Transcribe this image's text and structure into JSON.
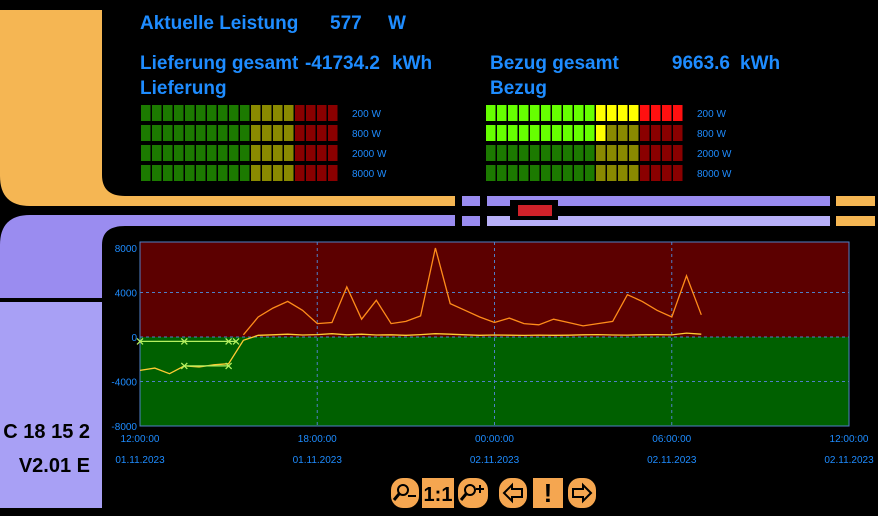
{
  "header": {
    "label": "Aktuelle Leistung",
    "value": "577",
    "unit": "W"
  },
  "lieferung": {
    "label": "Lieferung gesamt",
    "value": "-41734.2",
    "unit": "kWh",
    "meter_title": "Lieferung",
    "meter_rows": [
      {
        "label": "200 W",
        "lit": 0
      },
      {
        "label": "800 W",
        "lit": 0
      },
      {
        "label": "2000 W",
        "lit": 0
      },
      {
        "label": "8000 W",
        "lit": 0
      }
    ]
  },
  "bezug": {
    "label": "Bezug gesamt",
    "value": "9663.6",
    "unit": "kWh",
    "meter_title": "Bezug",
    "meter_rows": [
      {
        "label": "200 W",
        "lit": 18
      },
      {
        "label": "800 W",
        "lit": 11
      },
      {
        "label": "2000 W",
        "lit": 0
      },
      {
        "label": "8000 W",
        "lit": 0
      }
    ]
  },
  "sidebar": {
    "id": "C 18 15 2",
    "version": "V2.01 E"
  },
  "buttons": {
    "one_to_one": "1:1",
    "alert": "!"
  },
  "chart_data": {
    "type": "line",
    "xlim": [
      "2023-11-01T12:00:00",
      "2023-11-02T12:00:00"
    ],
    "xticks": [
      {
        "value": "2023-11-01T12:00:00",
        "label": "12:00:00",
        "date": "01.11.2023"
      },
      {
        "value": "2023-11-01T18:00:00",
        "label": "18:00:00",
        "date": "01.11.2023"
      },
      {
        "value": "2023-11-02T00:00:00",
        "label": "00:00:00",
        "date": "02.11.2023"
      },
      {
        "value": "2023-11-02T06:00:00",
        "label": "06:00:00",
        "date": "02.11.2023"
      },
      {
        "value": "2023-11-02T12:00:00",
        "label": "12:00:00",
        "date": "02.11.2023"
      }
    ],
    "ylim": [
      -8000,
      8000
    ],
    "yticks": [
      8000,
      4000,
      0,
      -4000,
      -8000
    ],
    "grid": true,
    "above_zero_color": "#5c0000",
    "below_zero_color": "#006000",
    "series": [
      {
        "color": "#ff8c1a",
        "x": [
          "2023-11-01T15:30:00",
          "2023-11-01T16:00:00",
          "2023-11-01T16:30:00",
          "2023-11-01T17:00:00",
          "2023-11-01T17:30:00",
          "2023-11-01T18:00:00",
          "2023-11-01T18:30:00",
          "2023-11-01T19:00:00",
          "2023-11-01T19:30:00",
          "2023-11-01T20:00:00",
          "2023-11-01T20:30:00",
          "2023-11-01T21:00:00",
          "2023-11-01T21:30:00",
          "2023-11-01T22:00:00",
          "2023-11-01T22:30:00",
          "2023-11-01T23:00:00",
          "2023-11-01T23:30:00",
          "2023-11-02T00:00:00",
          "2023-11-02T00:30:00",
          "2023-11-02T01:00:00",
          "2023-11-02T01:30:00",
          "2023-11-02T02:00:00",
          "2023-11-02T02:30:00",
          "2023-11-02T03:00:00",
          "2023-11-02T03:30:00",
          "2023-11-02T04:00:00",
          "2023-11-02T04:30:00",
          "2023-11-02T05:00:00",
          "2023-11-02T05:30:00",
          "2023-11-02T06:00:00",
          "2023-11-02T06:30:00",
          "2023-11-02T07:00:00"
        ],
        "values": [
          200,
          1800,
          2600,
          3200,
          2400,
          1200,
          1300,
          4500,
          1600,
          3300,
          1200,
          1400,
          1900,
          8000,
          3000,
          2400,
          1800,
          1300,
          1700,
          1200,
          1100,
          1600,
          1300,
          1000,
          1200,
          1400,
          3800,
          3200,
          2400,
          1800,
          5500,
          2000
        ]
      },
      {
        "color": "#ffcc33",
        "x": [
          "2023-11-01T12:00:00",
          "2023-11-01T12:30:00",
          "2023-11-01T13:00:00",
          "2023-11-01T13:30:00",
          "2023-11-01T14:00:00",
          "2023-11-01T14:30:00",
          "2023-11-01T15:00:00",
          "2023-11-01T15:30:00",
          "2023-11-01T16:00:00",
          "2023-11-01T16:30:00",
          "2023-11-01T17:00:00",
          "2023-11-01T17:30:00",
          "2023-11-01T18:00:00",
          "2023-11-01T18:30:00",
          "2023-11-01T19:00:00",
          "2023-11-01T19:30:00",
          "2023-11-01T20:00:00",
          "2023-11-01T20:30:00",
          "2023-11-01T21:00:00",
          "2023-11-01T21:30:00",
          "2023-11-01T22:00:00",
          "2023-11-01T22:30:00",
          "2023-11-01T23:00:00",
          "2023-11-01T23:30:00",
          "2023-11-02T00:00:00",
          "2023-11-02T00:30:00",
          "2023-11-02T01:00:00",
          "2023-11-02T01:30:00",
          "2023-11-02T02:00:00",
          "2023-11-02T02:30:00",
          "2023-11-02T03:00:00",
          "2023-11-02T03:30:00",
          "2023-11-02T04:00:00",
          "2023-11-02T04:30:00",
          "2023-11-02T05:00:00",
          "2023-11-02T05:30:00",
          "2023-11-02T06:00:00",
          "2023-11-02T06:30:00",
          "2023-11-02T07:00:00"
        ],
        "values": [
          -3000,
          -2800,
          -3300,
          -2600,
          -2700,
          -2500,
          -2400,
          -300,
          150,
          200,
          250,
          180,
          220,
          300,
          200,
          250,
          180,
          200,
          150,
          220,
          300,
          250,
          200,
          150,
          180,
          160,
          140,
          170,
          150,
          160,
          200,
          220,
          180,
          170,
          200,
          210,
          190,
          350,
          250
        ]
      },
      {
        "color": "#b4f060",
        "marker": "x",
        "x": [
          "2023-11-01T12:00:00",
          "2023-11-01T13:30:00",
          "2023-11-01T15:00:00",
          "2023-11-01T15:15:00"
        ],
        "values": [
          -400,
          -400,
          -400,
          -400
        ]
      },
      {
        "color": "#b4f060",
        "marker": "x",
        "x": [
          "2023-11-01T13:30:00",
          "2023-11-01T15:00:00"
        ],
        "values": [
          -2600,
          -2600
        ]
      }
    ]
  }
}
